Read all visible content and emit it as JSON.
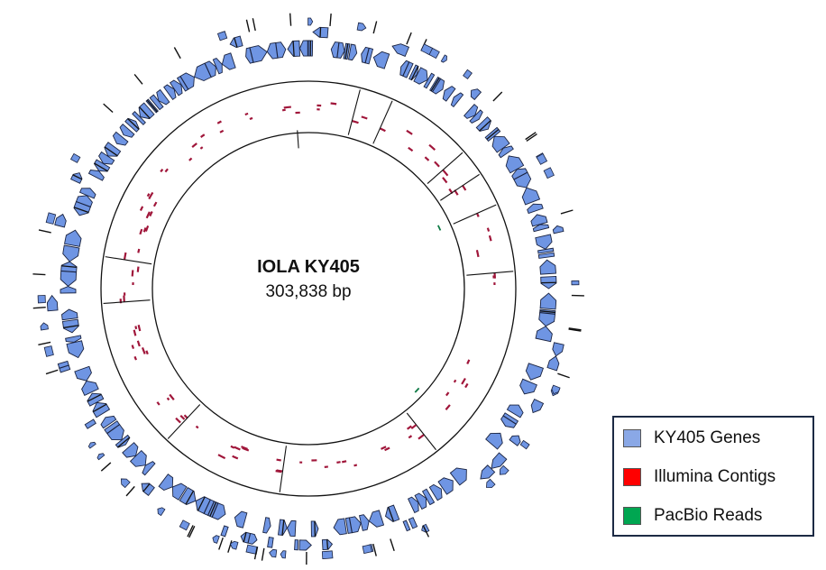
{
  "title": "IOLA KY405",
  "subtitle": "303,838 bp",
  "legend": [
    {
      "label": "KY405 Genes",
      "color": "#7b9be0"
    },
    {
      "label": "Illumina Contigs",
      "color": "#ff0000"
    },
    {
      "label": "PacBio Reads",
      "color": "#00a651"
    }
  ],
  "colors": {
    "gene_fill": "#6f95e3",
    "gene_stroke": "#1a2340",
    "contig": "#a0163a",
    "pacbio": "#0e7a45",
    "ring": "#111111"
  }
}
